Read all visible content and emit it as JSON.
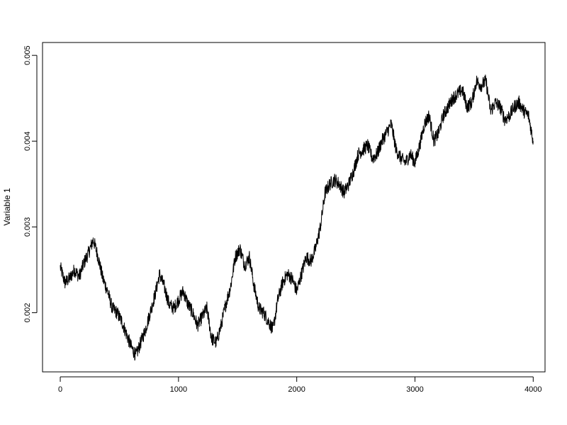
{
  "chart_data": {
    "type": "line",
    "title": "",
    "xlabel": "",
    "ylabel": "Variable 1",
    "xlim": [
      -150,
      4100
    ],
    "ylim": [
      0.00131,
      0.00515
    ],
    "x_ticks": [
      0,
      1000,
      2000,
      3000,
      4000
    ],
    "x_tick_labels": [
      "0",
      "1000",
      "2000",
      "3000",
      "4000"
    ],
    "y_ticks": [
      0.002,
      0.003,
      0.004,
      0.005
    ],
    "y_tick_labels": [
      "0.002",
      "0.003",
      "0.004",
      "0.005"
    ],
    "grid": false,
    "legend": "none",
    "color": "#000000",
    "series": [
      {
        "x": [
          0,
          40,
          80,
          120,
          160,
          200,
          240,
          280,
          320,
          360,
          400,
          440,
          480,
          520,
          560,
          600,
          640,
          680,
          720,
          760,
          800,
          840,
          880,
          920,
          960,
          1000,
          1040,
          1080,
          1120,
          1160,
          1200,
          1240,
          1280,
          1320,
          1360,
          1400,
          1440,
          1480,
          1520,
          1560,
          1600,
          1640,
          1680,
          1720,
          1760,
          1800,
          1840,
          1880,
          1920,
          1960,
          2000,
          2040,
          2080,
          2120,
          2160,
          2200,
          2240,
          2280,
          2320,
          2360,
          2400,
          2440,
          2480,
          2520,
          2560,
          2600,
          2640,
          2680,
          2720,
          2760,
          2800,
          2840,
          2880,
          2920,
          2960,
          3000,
          3040,
          3080,
          3120,
          3160,
          3200,
          3240,
          3280,
          3320,
          3360,
          3400,
          3440,
          3480,
          3520,
          3560,
          3600,
          3640,
          3680,
          3720,
          3760,
          3800,
          3840,
          3880,
          3920,
          3960,
          4000
        ],
        "values": [
          0.00253,
          0.00235,
          0.0024,
          0.0025,
          0.00242,
          0.00258,
          0.0027,
          0.00285,
          0.00265,
          0.0024,
          0.00225,
          0.00205,
          0.002,
          0.0019,
          0.00175,
          0.0016,
          0.0015,
          0.00165,
          0.0018,
          0.002,
          0.0022,
          0.00245,
          0.0023,
          0.0021,
          0.00205,
          0.00215,
          0.00225,
          0.0021,
          0.002,
          0.00185,
          0.00195,
          0.00205,
          0.0017,
          0.00165,
          0.00185,
          0.0021,
          0.0023,
          0.00265,
          0.00275,
          0.00255,
          0.00265,
          0.0023,
          0.00205,
          0.002,
          0.0019,
          0.0018,
          0.00215,
          0.00235,
          0.00245,
          0.0024,
          0.00225,
          0.00245,
          0.00265,
          0.0026,
          0.00275,
          0.003,
          0.0034,
          0.0035,
          0.00355,
          0.0035,
          0.0034,
          0.0035,
          0.00365,
          0.00385,
          0.0039,
          0.00395,
          0.0038,
          0.00385,
          0.004,
          0.0041,
          0.0042,
          0.0039,
          0.0038,
          0.00375,
          0.00385,
          0.00375,
          0.00395,
          0.0042,
          0.0043,
          0.004,
          0.0041,
          0.0043,
          0.0044,
          0.0045,
          0.00455,
          0.0046,
          0.0044,
          0.00445,
          0.0047,
          0.00465,
          0.0047,
          0.00435,
          0.00445,
          0.0044,
          0.00425,
          0.0043,
          0.0044,
          0.00445,
          0.00435,
          0.0043,
          0.004
        ]
      }
    ]
  }
}
